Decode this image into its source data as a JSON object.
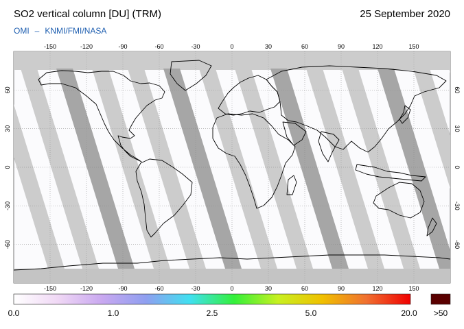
{
  "header": {
    "title": "SO2 vertical column [DU] (TRM)",
    "date": "25 September 2020",
    "credit_left": "OMI",
    "credit_dash": "–",
    "credit_right": "KNMI/FMI/NASA"
  },
  "map": {
    "lon_ticks": [
      "-150",
      "-120",
      "-90",
      "-60",
      "-30",
      "0",
      "30",
      "60",
      "90",
      "120",
      "150"
    ],
    "lat_ticks": [
      "60",
      "30",
      "0",
      "-30",
      "-60"
    ],
    "colors": {
      "ocean": "#fbfbfd",
      "land_outline": "#000000",
      "swath_light": "#cccccc",
      "swath_dark": "#a6a6a6",
      "polar_cap": "#c9c9c9"
    }
  },
  "colorbar": {
    "labels": [
      "0.0",
      "1.0",
      "2.5",
      "5.0",
      "20.0",
      ">50"
    ],
    "gradient": [
      "#ffffff",
      "#f0d8f5",
      "#c9a8f0",
      "#8f9ff0",
      "#40e0f0",
      "#33f03a",
      "#c8f020",
      "#f0c000",
      "#f07030",
      "#f00000"
    ],
    "overflow_color": "#5a0000"
  }
}
